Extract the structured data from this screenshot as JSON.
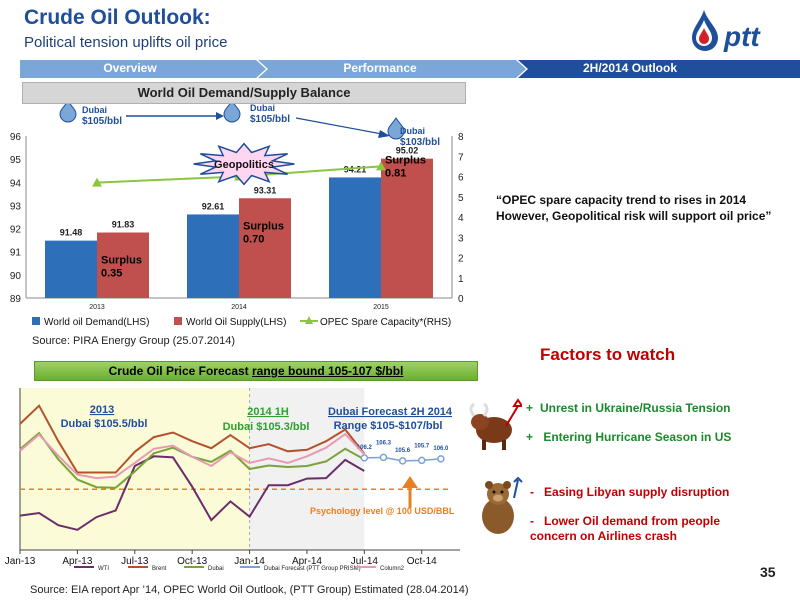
{
  "header": {
    "title": "Crude Oil Outlook:",
    "subtitle": "Political tension uplifts oil price",
    "logo_text": "ptt",
    "logo_icon": "oil-drop-icon"
  },
  "nav": {
    "tabs": [
      {
        "label": "Overview"
      },
      {
        "label": "Performance"
      },
      {
        "label": "2H/2014 Outlook"
      }
    ]
  },
  "section1": {
    "title": "World Oil Demand/Supply Balance",
    "source": "Source: PIRA Energy Group (25.07.2014)",
    "callouts": {
      "dubai1": [
        "Dubai",
        "$105/bbl"
      ],
      "dubai2": [
        "Dubai",
        "$105/bbl"
      ],
      "dubai3": [
        "Dubai",
        "$103/bbl"
      ],
      "geopolitics": "Geopolitics"
    }
  },
  "quote": "“OPEC spare capacity trend to  rises  in 2014 However, Geopolitical risk will support oil price”",
  "factors_title": "Factors to watch",
  "factors": {
    "positive": [
      {
        "sign": "+",
        "text": "Unrest in Ukraine/Russia Tension"
      },
      {
        "sign": "+",
        "text": " Entering Hurricane Season in US"
      }
    ],
    "negative": [
      {
        "sign": "-",
        "text": "Easing Libyan supply disruption"
      },
      {
        "sign": "-",
        "text": "Lower Oil demand from people concern on Airlines crash"
      }
    ]
  },
  "section2": {
    "title_prefix": "Crude Oil Price Forecast ",
    "title_underlined": "range bound 105-107 $/bbl",
    "source": "Source: EIA report Apr ’14, OPEC World Oil Outlook, (PTT Group) Estimated (28.04.2014)",
    "annotations": {
      "y2013": "2013",
      "y2013_price": "Dubai $105.5/bbl",
      "h2014": "2014 1H",
      "h2014_price": "Dubai $105.3/bbl",
      "forecast": "Dubai Forecast  2H 2014",
      "forecast_range": "Range $105-$107/bbl",
      "psych": "Psychology level @ 100 USD/BBL"
    }
  },
  "page_number": "35",
  "colors": {
    "blue": "#1f4e9a",
    "demand": "#2e6fba",
    "supply": "#c0504d",
    "spare": "#8cc63f",
    "red": "#c00000",
    "green": "#1a8a2a"
  },
  "chart_data": [
    {
      "type": "bar",
      "title": "World Oil Demand/Supply Balance",
      "categories": [
        "2013",
        "2014",
        "2015"
      ],
      "series": [
        {
          "name": "World oil Demand(LHS)",
          "values": [
            91.48,
            92.61,
            94.21
          ],
          "color": "#2e6fba"
        },
        {
          "name": "World Oil Supply(LHS)",
          "values": [
            91.83,
            93.31,
            95.02
          ],
          "color": "#c0504d"
        }
      ],
      "line_series": [
        {
          "name": "OPEC Spare Capacity*(RHS)",
          "values": [
            5.7,
            6.0,
            6.5
          ],
          "color": "#8cc63f"
        }
      ],
      "surplus_labels": [
        "Surplus 0.35",
        "Surplus 0.70",
        "Surplus 0.81"
      ],
      "ylim": [
        89,
        96
      ],
      "yticks": [
        89,
        90,
        91,
        92,
        93,
        94,
        95,
        96
      ],
      "y2lim": [
        0,
        8
      ],
      "y2ticks": [
        0,
        1,
        2,
        3,
        4,
        5,
        6,
        7,
        8
      ],
      "legend": "bottom"
    },
    {
      "type": "line",
      "title": "Crude Oil Price Forecast range bound 105-107 $/bbl",
      "x_labels": [
        "Jan-13",
        "Apr-13",
        "Jul-13",
        "Oct-13",
        "Jan-14",
        "Apr-14",
        "Jul-14",
        "Oct-14"
      ],
      "x_months": [
        1,
        4,
        7,
        10,
        13,
        16,
        19,
        22
      ],
      "series": [
        {
          "name": "WTI",
          "color": "#6b2e6b",
          "x": [
            1,
            2,
            3,
            4,
            5,
            6,
            7,
            8,
            9,
            10,
            11,
            12,
            13,
            14,
            15,
            16,
            17,
            18,
            19
          ],
          "values": [
            94.8,
            95.3,
            92.9,
            92.0,
            94.5,
            95.8,
            104.6,
            106.5,
            106.3,
            100.5,
            93.9,
            97.6,
            94.6,
            100.8,
            100.8,
            102.1,
            102.2,
            105.8,
            103.6
          ]
        },
        {
          "name": "Brent",
          "color": "#b5522e",
          "x": [
            1,
            2,
            3,
            4,
            5,
            6,
            7,
            8,
            9,
            10,
            11,
            12,
            13,
            14,
            15,
            16,
            17,
            18,
            19
          ],
          "values": [
            112.9,
            116.5,
            109.5,
            103.3,
            103.3,
            103.3,
            107.4,
            110.3,
            111.2,
            109.5,
            108.1,
            110.7,
            108.1,
            108.9,
            107.5,
            107.8,
            109.5,
            111.8,
            107.0
          ]
        },
        {
          "name": "Dubai",
          "color": "#7aa33a",
          "x": [
            1,
            2,
            3,
            4,
            5,
            6,
            7,
            8,
            9,
            10,
            11,
            12,
            13,
            14,
            15,
            16,
            17,
            18,
            19
          ],
          "values": [
            107.9,
            111.1,
            105.9,
            101.9,
            100.4,
            100.3,
            103.5,
            107.1,
            108.2,
            106.4,
            105.4,
            107.6,
            104.0,
            104.7,
            104.4,
            104.6,
            105.5,
            108.0,
            105.9
          ]
        },
        {
          "name": "Dubai Forecast (PTT Group PRISM)",
          "color": "#7aa2d6",
          "x": [
            19,
            20,
            21,
            22,
            23
          ],
          "values": [
            106.2,
            106.3,
            105.6,
            105.7,
            106.0
          ],
          "labels": [
            "106.2",
            "106.3",
            "105.6",
            "105.7",
            "106.0"
          ]
        },
        {
          "name": "Column2",
          "color": "#e89ab4",
          "x": [
            1,
            2,
            3,
            4,
            5,
            6,
            7,
            8,
            9,
            10,
            11,
            12,
            13,
            14,
            15,
            16,
            17,
            18,
            19
          ],
          "values": [
            107.6,
            110.8,
            106.6,
            102.9,
            102.2,
            102.5,
            105.2,
            108.0,
            108.6,
            106.4,
            104.6,
            107.3,
            105.2,
            106.1,
            105.2,
            106.5,
            108.2,
            110.9,
            106.9
          ]
        }
      ],
      "reference_line": {
        "value": 100,
        "label": "Psychology level @ 100 USD/BBL",
        "color": "#e87f20"
      },
      "ylim": [
        88,
        120
      ],
      "legend": "bottom"
    }
  ]
}
